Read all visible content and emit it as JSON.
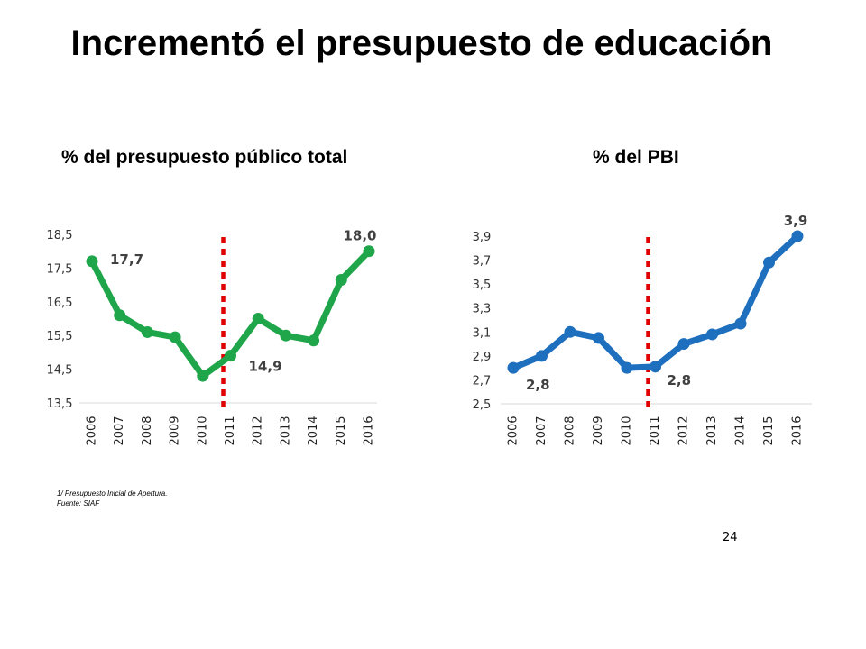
{
  "slide": {
    "title": "Incrementó el presupuesto de educación",
    "page_number": "24"
  },
  "footnotes": {
    "note": "1/ Presupuesto Inicial de Apertura.",
    "source": "Fuente: SIAF"
  },
  "chart_data": [
    {
      "type": "line",
      "title": "% del presupuesto público total",
      "categories": [
        "2006",
        "2007",
        "2008",
        "2009",
        "2010",
        "2011",
        "2012",
        "2013",
        "2014",
        "2015",
        "2016"
      ],
      "values": [
        17.7,
        16.1,
        15.6,
        15.45,
        14.3,
        14.9,
        16.0,
        15.5,
        15.35,
        17.15,
        18.0
      ],
      "ylim": [
        13.5,
        18.5
      ],
      "y_ticks": [
        "13,5",
        "14,5",
        "15,5",
        "16,5",
        "17,5",
        "18,5"
      ],
      "y_tick_values": [
        13.5,
        14.5,
        15.5,
        16.5,
        17.5,
        18.5
      ],
      "data_labels": [
        {
          "index": 0,
          "text": "17,7",
          "position": "right"
        },
        {
          "index": 5,
          "text": "14,9",
          "position": "right"
        },
        {
          "index": 10,
          "text": "18,0",
          "position": "above"
        }
      ],
      "divider_at": "2011",
      "color": "#1fa64a",
      "divider_color": "#e00000",
      "grid": false
    },
    {
      "type": "line",
      "title": "% del PBI",
      "categories": [
        "2006",
        "2007",
        "2008",
        "2009",
        "2010",
        "2011",
        "2012",
        "2013",
        "2014",
        "2015",
        "2016"
      ],
      "values": [
        2.8,
        2.9,
        3.1,
        3.05,
        2.8,
        2.81,
        3.0,
        3.08,
        3.17,
        3.68,
        3.9
      ],
      "ylim": [
        2.5,
        3.9
      ],
      "y_ticks": [
        "2,5",
        "2,7",
        "2,9",
        "3,1",
        "3,3",
        "3,5",
        "3,7",
        "3,9"
      ],
      "y_tick_values": [
        2.5,
        2.7,
        2.9,
        3.1,
        3.3,
        3.5,
        3.7,
        3.9
      ],
      "data_labels": [
        {
          "index": 0,
          "text": "2,8",
          "position": "below"
        },
        {
          "index": 5,
          "text": "2,8",
          "position": "below"
        },
        {
          "index": 10,
          "text": "3,9",
          "position": "above"
        }
      ],
      "divider_at": "2011",
      "color": "#1f6fbf",
      "divider_color": "#e00000",
      "grid": false
    }
  ]
}
